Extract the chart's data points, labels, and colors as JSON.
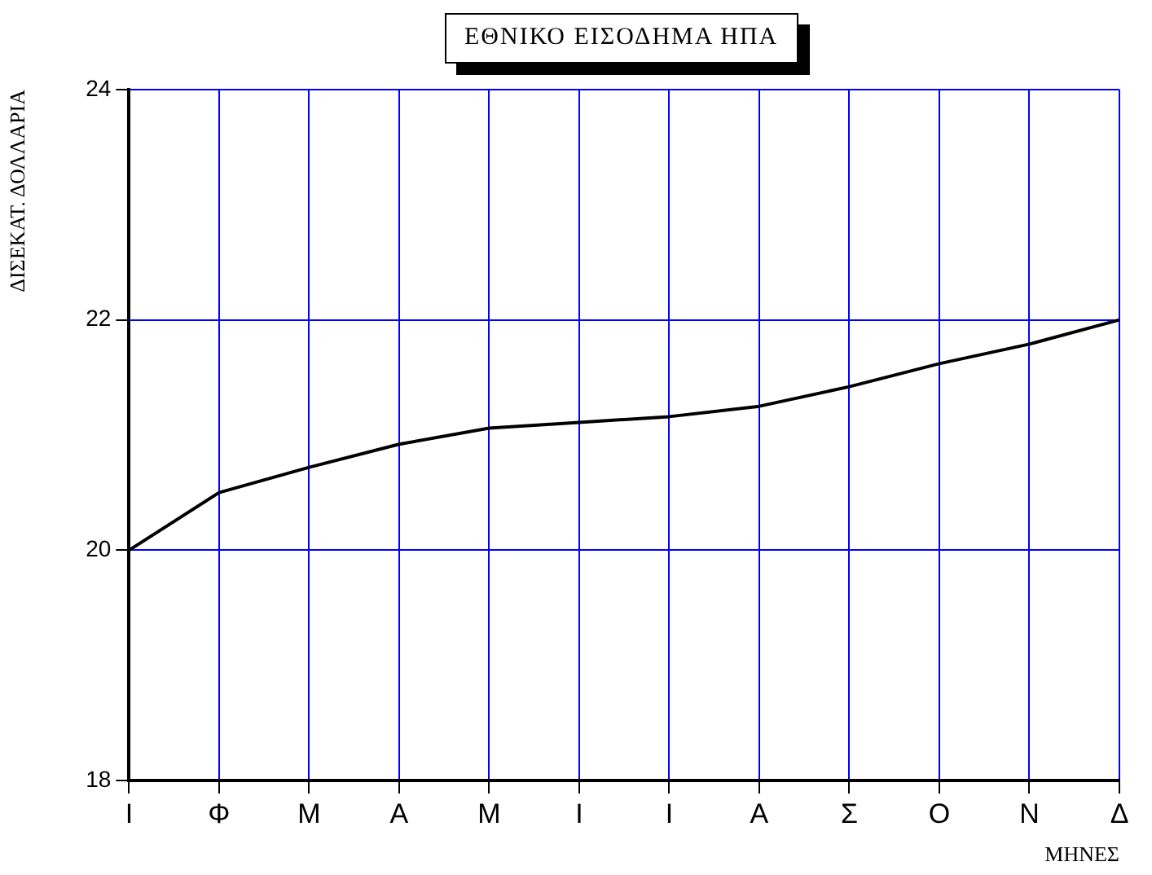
{
  "chart_data": {
    "type": "line",
    "title": "ΕΘΝΙΚΟ ΕΙΣΟΔΗΜΑ ΗΠΑ",
    "xlabel": "ΜΗΝΕΣ",
    "ylabel": "ΔΙΣΕΚΑΤ. ΔΟΛΛΑΡΙΑ",
    "categories": [
      "Ι",
      "Φ",
      "Μ",
      "Α",
      "Μ",
      "Ι",
      "Ι",
      "Α",
      "Σ",
      "Ο",
      "Ν",
      "Δ"
    ],
    "series": [
      {
        "color": "#000000",
        "values": [
          20.0,
          20.5,
          20.72,
          20.92,
          21.06,
          21.11,
          21.16,
          21.25,
          21.42,
          21.62,
          21.79,
          22.0
        ]
      }
    ],
    "ylim": [
      18,
      24
    ],
    "yticks": [
      18,
      20,
      22,
      24
    ],
    "grid": true,
    "marker": "none",
    "line_style": "solid",
    "legend": false
  }
}
